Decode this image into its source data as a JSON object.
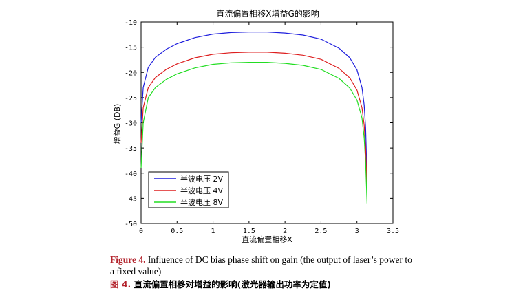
{
  "chart_data": {
    "type": "line",
    "title": "直流偏置相移X增益G的影响",
    "xlabel": "直流偏置相移X",
    "ylabel": "增益G (DB)",
    "xlim": [
      0,
      3.5
    ],
    "ylim": [
      -50,
      -10
    ],
    "xticks": [
      "0",
      "0.5",
      "1",
      "1.5",
      "2",
      "2.5",
      "3",
      "3.5"
    ],
    "yticks": [
      "-10",
      "-15",
      "-20",
      "-25",
      "-30",
      "-35",
      "-40",
      "-45",
      "-50"
    ],
    "legend_position": "bottom-left",
    "series": [
      {
        "name": "半波电压 2V",
        "color": "#1f1fdd",
        "x": [
          0,
          0.03,
          0.1,
          0.2,
          0.35,
          0.5,
          0.75,
          1.0,
          1.25,
          1.5,
          1.6,
          1.75,
          2.0,
          2.25,
          2.5,
          2.75,
          2.9,
          3.0,
          3.07,
          3.1,
          3.12,
          3.14
        ],
        "y": [
          -30,
          -23,
          -19,
          -17,
          -15.4,
          -14.3,
          -13.1,
          -12.4,
          -12.1,
          -12.0,
          -12.0,
          -12.0,
          -12.2,
          -12.6,
          -13.4,
          -15.2,
          -17.1,
          -19.5,
          -23,
          -26.5,
          -31,
          -41
        ]
      },
      {
        "name": "半波电压 4V",
        "color": "#dd1f1f",
        "x": [
          0,
          0.03,
          0.1,
          0.2,
          0.35,
          0.5,
          0.75,
          1.0,
          1.25,
          1.5,
          1.6,
          1.75,
          2.0,
          2.25,
          2.5,
          2.75,
          2.9,
          3.0,
          3.07,
          3.1,
          3.12,
          3.14
        ],
        "y": [
          -34,
          -27,
          -23,
          -21,
          -19.4,
          -18.3,
          -17.1,
          -16.4,
          -16.1,
          -16.0,
          -16.0,
          -16.0,
          -16.2,
          -16.6,
          -17.4,
          -19.2,
          -21.1,
          -23.5,
          -27,
          -30.5,
          -35,
          -43
        ]
      },
      {
        "name": "半波电压 8V",
        "color": "#22dd22",
        "x": [
          0,
          0.03,
          0.1,
          0.2,
          0.35,
          0.5,
          0.75,
          1.0,
          1.25,
          1.5,
          1.6,
          1.75,
          2.0,
          2.25,
          2.5,
          2.75,
          2.9,
          3.0,
          3.07,
          3.1,
          3.12,
          3.14
        ],
        "y": [
          -39,
          -30,
          -25,
          -23,
          -21.4,
          -20.3,
          -19.1,
          -18.4,
          -18.1,
          -18.0,
          -18.0,
          -18.0,
          -18.2,
          -18.6,
          -19.4,
          -21.2,
          -23.1,
          -25.5,
          -29,
          -33,
          -38,
          -46
        ]
      }
    ]
  },
  "caption": {
    "en_label": "Figure 4.",
    "en_text": " Influence of DC bias phase shift on gain (the output of laser’s power to a fixed value)",
    "zh_label": "图 4.",
    "zh_text": " 直流偏置相移对增益的影响(激光器输出功率为定值)"
  }
}
